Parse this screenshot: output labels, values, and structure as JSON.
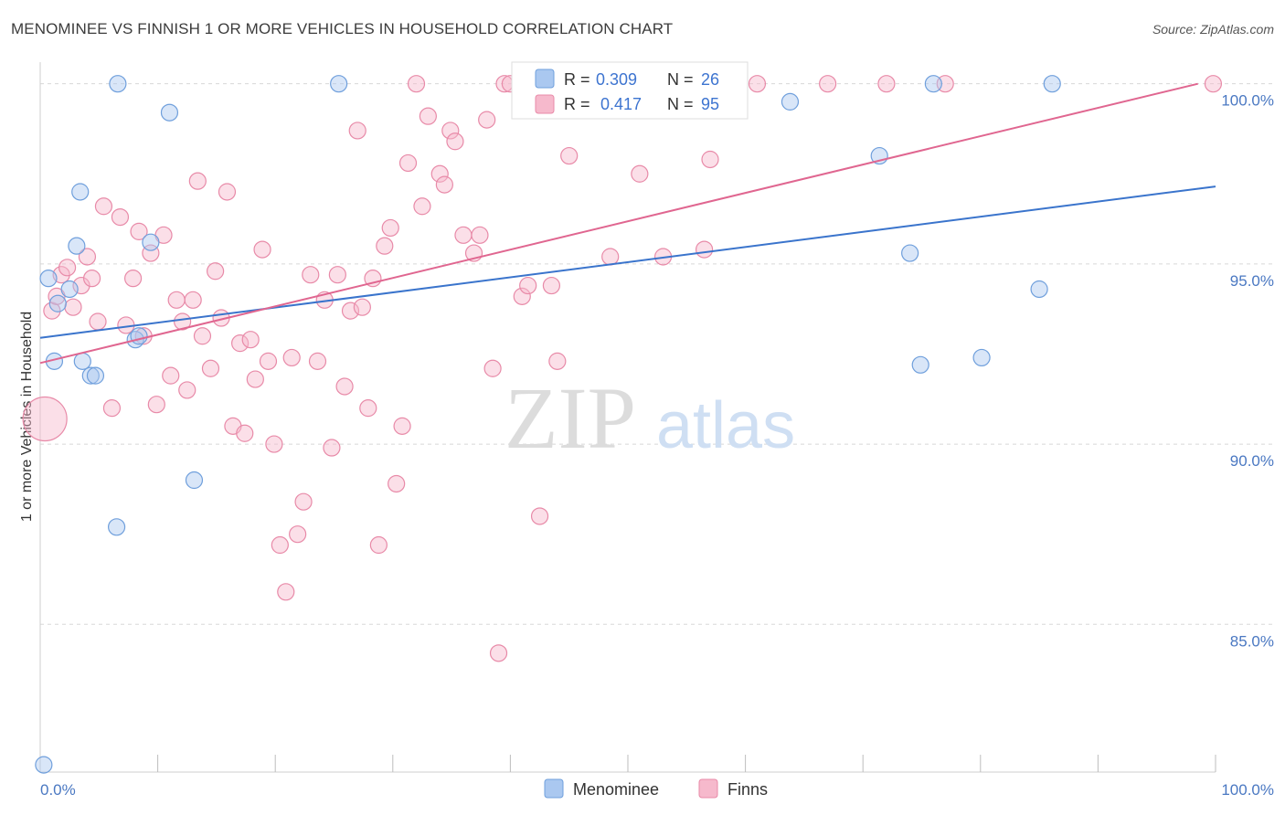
{
  "title": "MENOMINEE VS FINNISH 1 OR MORE VEHICLES IN HOUSEHOLD CORRELATION CHART",
  "source": "Source: ZipAtlas.com",
  "watermark": {
    "zip": "ZIP",
    "atlas": "atlas"
  },
  "colors": {
    "menominee_fill": "#aac8f0",
    "menominee_stroke": "#6f9fdc",
    "menominee_line": "#3a74cc",
    "finns_fill": "#f6b9cc",
    "finns_stroke": "#e88aa8",
    "finns_line": "#e06690",
    "tick_label": "#4a78c2",
    "grid": "#d8d8d8"
  },
  "legend": {
    "rows": [
      {
        "r_label": "R =",
        "r_value": "0.309",
        "n_label": "N =",
        "n_value": "26"
      },
      {
        "r_label": "R =",
        "r_value": "0.417",
        "n_label": "N =",
        "n_value": "95"
      }
    ]
  },
  "chart_data": {
    "type": "scatter",
    "title": "MENOMINEE VS FINNISH 1 OR MORE VEHICLES IN HOUSEHOLD CORRELATION CHART",
    "xlabel": "",
    "ylabel": "1 or more Vehicles in Household",
    "xlim": [
      0,
      100
    ],
    "ylim": [
      80.9,
      100.6
    ],
    "x_tick_labels": [
      "0.0%",
      "100.0%"
    ],
    "y_ticks": [
      85,
      90,
      95,
      100
    ],
    "y_tick_labels": [
      "85.0%",
      "90.0%",
      "95.0%",
      "100.0%"
    ],
    "grid": true,
    "legend_position": "top-center",
    "series": [
      {
        "name": "Menominee",
        "trend": {
          "x": [
            0,
            100
          ],
          "y": [
            92.95,
            97.15
          ]
        },
        "points": [
          [
            0.3,
            81.1
          ],
          [
            0.7,
            94.6
          ],
          [
            1.2,
            92.3
          ],
          [
            1.5,
            93.9
          ],
          [
            2.5,
            94.3
          ],
          [
            3.1,
            95.5
          ],
          [
            3.4,
            97.0
          ],
          [
            3.6,
            92.3
          ],
          [
            4.3,
            91.9
          ],
          [
            4.7,
            91.9
          ],
          [
            6.5,
            87.7
          ],
          [
            6.6,
            100.0
          ],
          [
            8.1,
            92.9
          ],
          [
            8.4,
            93.0
          ],
          [
            9.4,
            95.6
          ],
          [
            11.0,
            99.2
          ],
          [
            13.1,
            89.0
          ],
          [
            25.4,
            100.0
          ],
          [
            63.8,
            99.5
          ],
          [
            71.4,
            98.0
          ],
          [
            74.0,
            95.3
          ],
          [
            74.9,
            92.2
          ],
          [
            76.0,
            100.0
          ],
          [
            80.1,
            92.4
          ],
          [
            85.0,
            94.3
          ],
          [
            86.1,
            100.0
          ]
        ]
      },
      {
        "name": "Finns",
        "trend": {
          "x": [
            0,
            98.5
          ],
          "y": [
            92.25,
            100.0
          ]
        },
        "points": [
          [
            0.4,
            90.7
          ],
          [
            1.0,
            93.7
          ],
          [
            1.4,
            94.1
          ],
          [
            1.8,
            94.7
          ],
          [
            2.3,
            94.9
          ],
          [
            2.8,
            93.8
          ],
          [
            3.5,
            94.4
          ],
          [
            4.0,
            95.2
          ],
          [
            4.4,
            94.6
          ],
          [
            4.9,
            93.4
          ],
          [
            5.4,
            96.6
          ],
          [
            6.1,
            91.0
          ],
          [
            6.8,
            96.3
          ],
          [
            7.3,
            93.3
          ],
          [
            7.9,
            94.6
          ],
          [
            8.4,
            95.9
          ],
          [
            8.8,
            93.0
          ],
          [
            9.4,
            95.3
          ],
          [
            9.9,
            91.1
          ],
          [
            10.5,
            95.8
          ],
          [
            11.1,
            91.9
          ],
          [
            11.6,
            94.0
          ],
          [
            12.1,
            93.4
          ],
          [
            12.5,
            91.5
          ],
          [
            13.0,
            94.0
          ],
          [
            13.4,
            97.3
          ],
          [
            13.8,
            93.0
          ],
          [
            14.5,
            92.1
          ],
          [
            14.9,
            94.8
          ],
          [
            15.4,
            93.5
          ],
          [
            15.9,
            97.0
          ],
          [
            16.4,
            90.5
          ],
          [
            17.0,
            92.8
          ],
          [
            17.4,
            90.3
          ],
          [
            17.9,
            92.9
          ],
          [
            18.3,
            91.8
          ],
          [
            18.9,
            95.4
          ],
          [
            19.4,
            92.3
          ],
          [
            19.9,
            90.0
          ],
          [
            20.4,
            87.2
          ],
          [
            20.9,
            85.9
          ],
          [
            21.4,
            92.4
          ],
          [
            21.9,
            87.5
          ],
          [
            22.4,
            88.4
          ],
          [
            23.0,
            94.7
          ],
          [
            23.6,
            92.3
          ],
          [
            24.2,
            94.0
          ],
          [
            24.8,
            89.9
          ],
          [
            25.3,
            94.7
          ],
          [
            25.9,
            91.6
          ],
          [
            26.4,
            93.7
          ],
          [
            27.0,
            98.7
          ],
          [
            27.4,
            93.8
          ],
          [
            27.9,
            91.0
          ],
          [
            28.3,
            94.6
          ],
          [
            28.8,
            87.2
          ],
          [
            29.3,
            95.5
          ],
          [
            29.8,
            96.0
          ],
          [
            30.3,
            88.9
          ],
          [
            30.8,
            90.5
          ],
          [
            31.3,
            97.8
          ],
          [
            32.0,
            100.0
          ],
          [
            32.5,
            96.6
          ],
          [
            33.0,
            99.1
          ],
          [
            34.0,
            97.5
          ],
          [
            34.4,
            97.2
          ],
          [
            34.9,
            98.7
          ],
          [
            35.3,
            98.4
          ],
          [
            36.0,
            95.8
          ],
          [
            36.9,
            95.3
          ],
          [
            37.4,
            95.8
          ],
          [
            38.0,
            99.0
          ],
          [
            38.5,
            92.1
          ],
          [
            39.0,
            84.2
          ],
          [
            39.5,
            100.0
          ],
          [
            40.0,
            100.0
          ],
          [
            41.0,
            94.1
          ],
          [
            41.5,
            94.4
          ],
          [
            42.5,
            88.0
          ],
          [
            43.5,
            94.4
          ],
          [
            44.0,
            92.3
          ],
          [
            45.0,
            98.0
          ],
          [
            47.0,
            100.0
          ],
          [
            48.5,
            95.2
          ],
          [
            51.0,
            97.5
          ],
          [
            53.0,
            95.2
          ],
          [
            55.0,
            100.0
          ],
          [
            56.5,
            95.4
          ],
          [
            57.0,
            97.9
          ],
          [
            59.0,
            100.0
          ],
          [
            61.0,
            100.0
          ],
          [
            67.0,
            100.0
          ],
          [
            72.0,
            100.0
          ],
          [
            77.0,
            100.0
          ],
          [
            99.8,
            100.0
          ]
        ]
      }
    ]
  },
  "bottom_legend": [
    {
      "label": "Menominee"
    },
    {
      "label": "Finns"
    }
  ]
}
